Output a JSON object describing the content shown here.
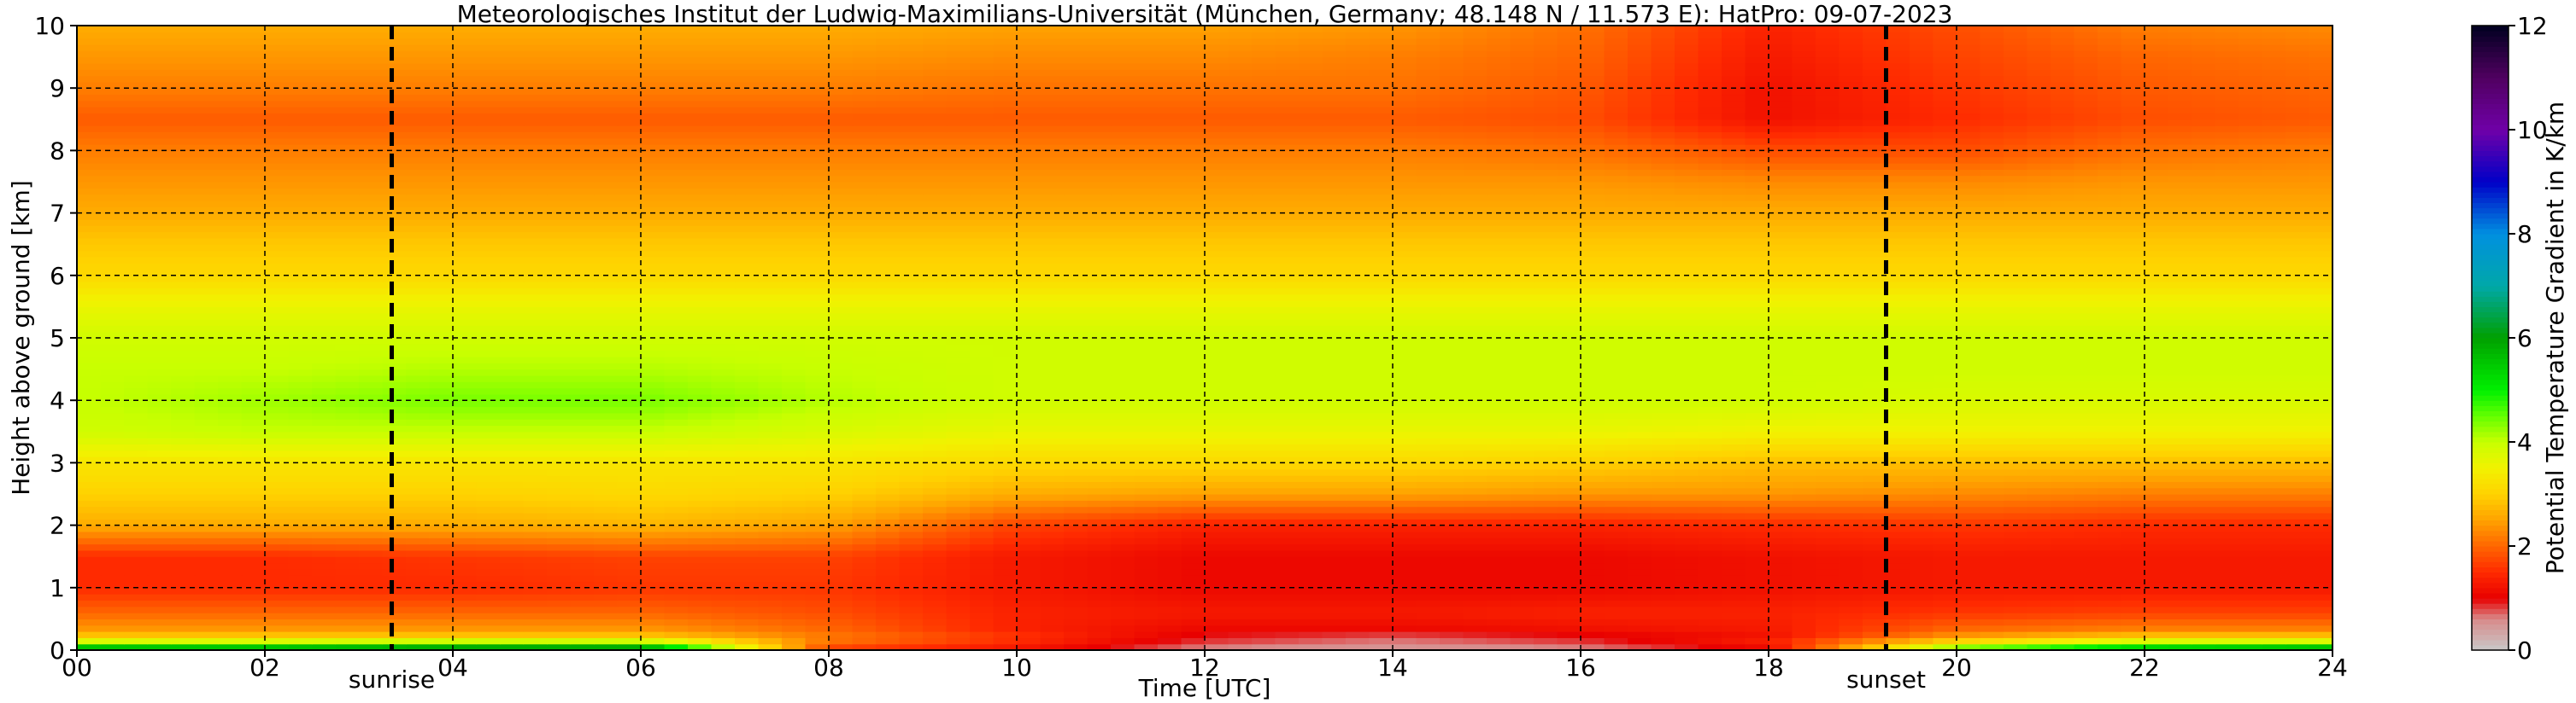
{
  "chart_data": {
    "type": "heatmap",
    "title": "Meteorologisches Institut der Ludwig-Maximilians-Universität (München, Germany; 48.148 N / 11.573 E):    HatPro: 09-07-2023",
    "xlabel": "Time [UTC]",
    "ylabel": "Height above ground [km]",
    "colorbar_label": "Potential Temperature Gradient in K/km",
    "xlim": [
      0,
      24
    ],
    "ylim": [
      0,
      10
    ],
    "x_ticks": [
      "00",
      "02",
      "04",
      "06",
      "08",
      "10",
      "12",
      "14",
      "16",
      "18",
      "20",
      "22",
      "24"
    ],
    "y_ticks": [
      "0",
      "1",
      "2",
      "3",
      "4",
      "5",
      "6",
      "7",
      "8",
      "9",
      "10"
    ],
    "colorbar_range": [
      0,
      12
    ],
    "colorbar_ticks": [
      "0",
      "2",
      "4",
      "6",
      "8",
      "10",
      "12"
    ],
    "grid": true,
    "events": [
      {
        "label": "sunrise",
        "time": 3.35
      },
      {
        "label": "sunset",
        "time": 19.25
      }
    ],
    "colormap": [
      {
        "v": 0.0,
        "c": "#c8c8c8"
      },
      {
        "v": 0.6,
        "c": "#d88a8a"
      },
      {
        "v": 1.0,
        "c": "#e80000"
      },
      {
        "v": 1.5,
        "c": "#ff2a00"
      },
      {
        "v": 2.0,
        "c": "#ff6600"
      },
      {
        "v": 2.5,
        "c": "#ffa200"
      },
      {
        "v": 3.0,
        "c": "#ffd200"
      },
      {
        "v": 3.5,
        "c": "#f2f200"
      },
      {
        "v": 4.0,
        "c": "#c8ff00"
      },
      {
        "v": 4.5,
        "c": "#64ff00"
      },
      {
        "v": 5.0,
        "c": "#00f000"
      },
      {
        "v": 6.0,
        "c": "#00a000"
      },
      {
        "v": 7.0,
        "c": "#00a8a8"
      },
      {
        "v": 8.0,
        "c": "#0090e0"
      },
      {
        "v": 9.0,
        "c": "#0000c8"
      },
      {
        "v": 10.0,
        "c": "#7000a8"
      },
      {
        "v": 11.0,
        "c": "#500060"
      },
      {
        "v": 12.0,
        "c": "#000020"
      }
    ],
    "time_axis": [
      0,
      2,
      4,
      6,
      8,
      10,
      12,
      14,
      16,
      18,
      20,
      22,
      24
    ],
    "height_axis": [
      0,
      0.1,
      0.2,
      0.35,
      0.6,
      1.0,
      1.5,
      2.0,
      2.5,
      3.0,
      3.5,
      4.0,
      4.5,
      5.0,
      5.5,
      6.0,
      6.5,
      7.0,
      7.5,
      8.0,
      8.5,
      9.0,
      9.5,
      10.0
    ],
    "values": [
      [
        6.5,
        6.5,
        6.8,
        6.8,
        1.5,
        1.2,
        0.5,
        0.4,
        0.5,
        0.8,
        5.0,
        6.0,
        6.5
      ],
      [
        4.5,
        4.5,
        4.8,
        4.8,
        2.0,
        1.4,
        0.8,
        0.6,
        0.8,
        1.5,
        3.5,
        4.5,
        4.5
      ],
      [
        3.0,
        3.0,
        3.0,
        3.0,
        2.2,
        1.6,
        0.9,
        0.7,
        0.9,
        1.2,
        2.5,
        3.0,
        3.0
      ],
      [
        2.4,
        2.4,
        2.4,
        2.4,
        2.0,
        1.4,
        1.1,
        1.1,
        1.2,
        1.3,
        2.0,
        2.2,
        2.2
      ],
      [
        2.0,
        2.0,
        2.0,
        2.0,
        1.8,
        1.4,
        1.3,
        1.3,
        1.4,
        1.4,
        1.6,
        1.7,
        1.7
      ],
      [
        1.5,
        1.5,
        1.5,
        1.6,
        1.6,
        1.3,
        1.1,
        1.1,
        1.1,
        1.2,
        1.3,
        1.3,
        1.3
      ],
      [
        1.5,
        1.5,
        1.6,
        1.7,
        1.7,
        1.3,
        1.1,
        1.1,
        1.1,
        1.2,
        1.3,
        1.3,
        1.3
      ],
      [
        2.6,
        2.6,
        2.6,
        2.7,
        2.5,
        1.7,
        1.4,
        1.4,
        1.4,
        1.5,
        1.6,
        1.5,
        1.5
      ],
      [
        3.0,
        3.0,
        3.0,
        3.1,
        3.0,
        2.6,
        2.5,
        2.5,
        2.4,
        2.4,
        2.3,
        2.2,
        2.2
      ],
      [
        3.3,
        3.3,
        3.3,
        3.3,
        3.3,
        3.1,
        3.1,
        3.1,
        3.0,
        2.8,
        2.8,
        2.8,
        2.8
      ],
      [
        3.9,
        4.0,
        4.0,
        4.0,
        3.8,
        3.6,
        3.6,
        3.6,
        3.6,
        3.5,
        3.5,
        3.5,
        3.5
      ],
      [
        4.0,
        4.2,
        4.4,
        4.4,
        4.1,
        3.9,
        3.9,
        3.9,
        3.9,
        3.9,
        3.8,
        3.8,
        3.8
      ],
      [
        4.0,
        4.0,
        4.1,
        4.1,
        4.0,
        3.9,
        3.9,
        3.9,
        3.9,
        3.9,
        3.9,
        3.9,
        3.9
      ],
      [
        3.9,
        3.9,
        3.9,
        3.9,
        3.9,
        3.9,
        3.9,
        3.9,
        3.9,
        3.9,
        3.9,
        3.9,
        3.9
      ],
      [
        3.6,
        3.6,
        3.6,
        3.6,
        3.6,
        3.6,
        3.6,
        3.6,
        3.6,
        3.6,
        3.6,
        3.6,
        3.6
      ],
      [
        3.1,
        3.1,
        3.1,
        3.1,
        3.1,
        3.1,
        3.1,
        3.1,
        3.1,
        3.1,
        3.1,
        3.1,
        3.1
      ],
      [
        2.9,
        2.9,
        2.9,
        2.9,
        2.9,
        2.9,
        2.9,
        2.9,
        2.9,
        2.9,
        2.9,
        2.9,
        2.9
      ],
      [
        2.6,
        2.6,
        2.6,
        2.6,
        2.6,
        2.6,
        2.6,
        2.6,
        2.6,
        2.6,
        2.6,
        2.6,
        2.6
      ],
      [
        2.4,
        2.4,
        2.4,
        2.4,
        2.4,
        2.4,
        2.4,
        2.4,
        2.4,
        2.3,
        2.3,
        2.4,
        2.4
      ],
      [
        2.2,
        2.2,
        2.2,
        2.2,
        2.2,
        2.2,
        2.2,
        2.2,
        2.1,
        1.8,
        1.8,
        2.1,
        2.2
      ],
      [
        1.9,
        1.9,
        1.9,
        1.9,
        1.9,
        1.9,
        1.9,
        1.9,
        1.8,
        1.2,
        1.5,
        1.8,
        1.9
      ],
      [
        2.2,
        2.2,
        2.2,
        2.2,
        2.2,
        2.1,
        2.1,
        2.1,
        1.9,
        1.2,
        1.6,
        1.9,
        2.0
      ],
      [
        2.4,
        2.4,
        2.4,
        2.4,
        2.4,
        2.3,
        2.3,
        2.2,
        2.0,
        1.3,
        1.7,
        2.0,
        2.1
      ],
      [
        2.6,
        2.6,
        2.6,
        2.6,
        2.6,
        2.5,
        2.5,
        2.4,
        2.1,
        1.4,
        1.8,
        2.2,
        2.3
      ]
    ]
  }
}
